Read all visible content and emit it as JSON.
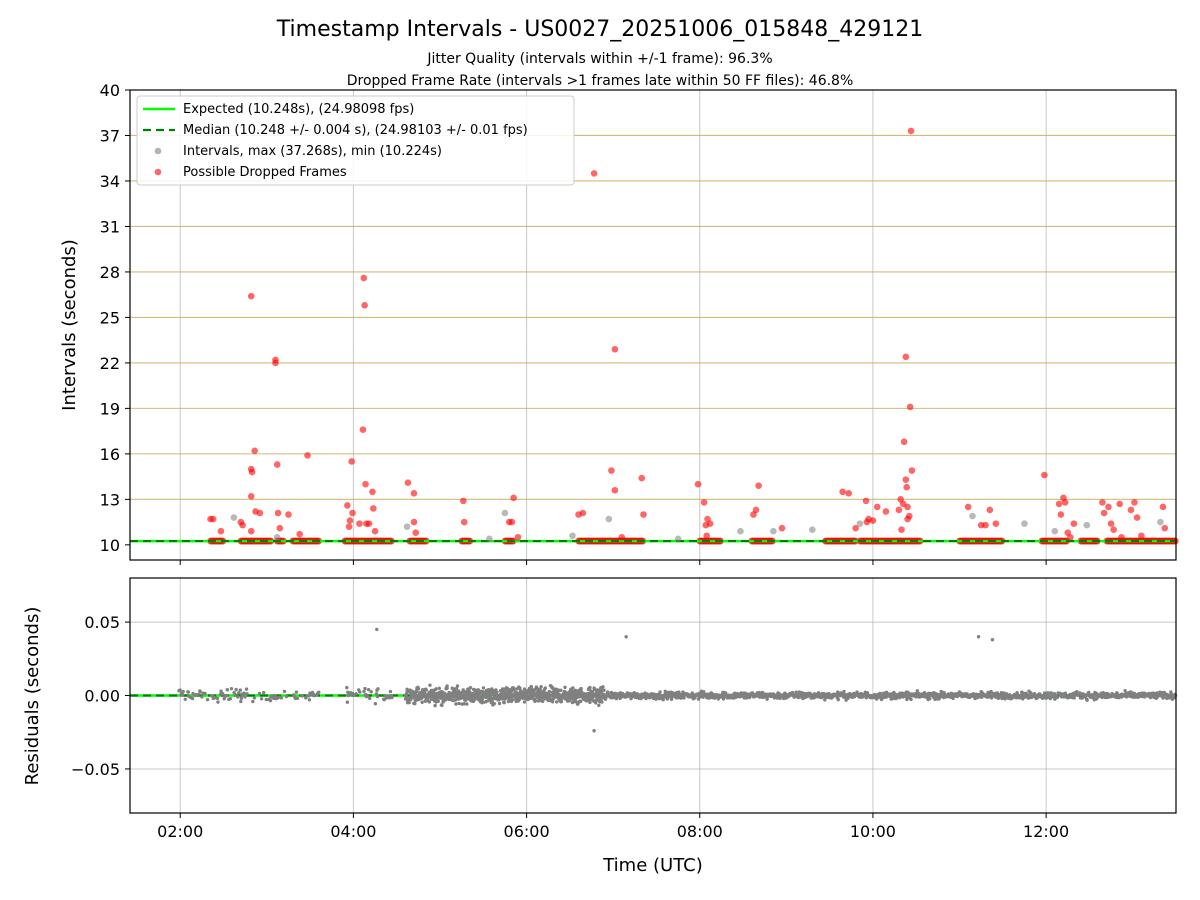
{
  "chart_data": {
    "type": "scatter",
    "title": "Timestamp Intervals - US0027_20251006_015848_429121",
    "subtitle_1": "Jitter Quality (intervals within +/-1 frame): 96.3%",
    "subtitle_2": "Dropped Frame Rate (intervals >1 frames late within 50 FF files): 46.8%",
    "xlabel": "Time (UTC)",
    "x_ticks": [
      "02:00",
      "04:00",
      "06:00",
      "08:00",
      "10:00",
      "12:00"
    ],
    "x_tick_hours": [
      2,
      4,
      6,
      8,
      10,
      12
    ],
    "xlim_hours": [
      1.42,
      13.5
    ],
    "top_panel": {
      "ylabel": "Intervals (seconds)",
      "ylim": [
        9,
        40
      ],
      "y_ticks": [
        10,
        13,
        16,
        19,
        22,
        25,
        28,
        31,
        34,
        37,
        40
      ],
      "y_tick_labels": [
        "10",
        "13",
        "16",
        "19",
        "22",
        "25",
        "28",
        "31",
        "34",
        "37",
        "40"
      ],
      "expected_line": 10.248,
      "median_line": 10.248,
      "legend": {
        "expected": "Expected (10.248s), (24.98098 fps)",
        "median": "Median (10.248 +/- 0.004 s), (24.98103 +/- 0.01 fps)",
        "intervals": "Intervals, max (37.268s), min (10.224s)",
        "dropped": "Possible Dropped Frames"
      },
      "dropped_frame_bands_hours": [
        [
          2.35,
          2.5
        ],
        [
          2.7,
          3.05
        ],
        [
          3.12,
          3.2
        ],
        [
          3.3,
          3.6
        ],
        [
          3.9,
          4.45
        ],
        [
          4.65,
          4.85
        ],
        [
          5.25,
          5.35
        ],
        [
          5.75,
          5.85
        ],
        [
          6.6,
          7.35
        ],
        [
          8.0,
          8.25
        ],
        [
          8.6,
          8.85
        ],
        [
          9.45,
          9.8
        ],
        [
          9.85,
          10.55
        ],
        [
          11.0,
          11.5
        ],
        [
          11.95,
          12.25
        ],
        [
          12.4,
          12.6
        ],
        [
          12.7,
          13.5
        ]
      ],
      "dropped_points": [
        [
          2.35,
          11.7
        ],
        [
          2.38,
          11.7
        ],
        [
          2.47,
          10.9
        ],
        [
          2.7,
          11.5
        ],
        [
          2.72,
          11.3
        ],
        [
          2.82,
          26.4
        ],
        [
          2.82,
          15.0
        ],
        [
          2.83,
          14.8
        ],
        [
          2.82,
          13.2
        ],
        [
          2.86,
          16.2
        ],
        [
          2.87,
          12.2
        ],
        [
          2.92,
          12.1
        ],
        [
          2.82,
          10.9
        ],
        [
          3.1,
          22.2
        ],
        [
          3.1,
          22.0
        ],
        [
          3.12,
          15.3
        ],
        [
          3.13,
          12.1
        ],
        [
          3.15,
          11.1
        ],
        [
          3.25,
          12.0
        ],
        [
          3.38,
          10.7
        ],
        [
          3.47,
          15.9
        ],
        [
          3.93,
          12.6
        ],
        [
          3.95,
          11.2
        ],
        [
          3.96,
          11.6
        ],
        [
          3.98,
          15.5
        ],
        [
          3.99,
          12.1
        ],
        [
          4.07,
          11.4
        ],
        [
          4.12,
          27.6
        ],
        [
          4.13,
          25.8
        ],
        [
          4.11,
          17.6
        ],
        [
          4.14,
          14.0
        ],
        [
          4.15,
          11.4
        ],
        [
          4.18,
          11.4
        ],
        [
          4.22,
          13.5
        ],
        [
          4.23,
          12.4
        ],
        [
          4.25,
          10.9
        ],
        [
          4.63,
          14.1
        ],
        [
          4.7,
          13.4
        ],
        [
          4.7,
          11.5
        ],
        [
          4.72,
          10.8
        ],
        [
          5.27,
          12.9
        ],
        [
          5.28,
          11.5
        ],
        [
          5.8,
          11.5
        ],
        [
          5.83,
          11.5
        ],
        [
          5.85,
          13.1
        ],
        [
          5.9,
          10.5
        ],
        [
          6.6,
          12.0
        ],
        [
          6.65,
          12.1
        ],
        [
          6.78,
          34.5
        ],
        [
          6.98,
          14.9
        ],
        [
          7.02,
          22.9
        ],
        [
          7.02,
          13.6
        ],
        [
          7.1,
          10.5
        ],
        [
          7.33,
          14.4
        ],
        [
          7.35,
          12.0
        ],
        [
          7.98,
          14.0
        ],
        [
          8.05,
          12.8
        ],
        [
          8.07,
          11.3
        ],
        [
          8.09,
          11.7
        ],
        [
          8.12,
          11.4
        ],
        [
          8.08,
          10.6
        ],
        [
          8.62,
          12.0
        ],
        [
          8.65,
          12.3
        ],
        [
          8.68,
          13.9
        ],
        [
          8.95,
          11.1
        ],
        [
          9.65,
          13.5
        ],
        [
          9.72,
          13.4
        ],
        [
          9.8,
          11.1
        ],
        [
          9.92,
          12.9
        ],
        [
          9.93,
          11.5
        ],
        [
          9.95,
          11.7
        ],
        [
          10.0,
          11.6
        ],
        [
          10.05,
          12.5
        ],
        [
          10.15,
          12.2
        ],
        [
          10.3,
          12.3
        ],
        [
          10.32,
          13.0
        ],
        [
          10.33,
          11.0
        ],
        [
          10.35,
          12.7
        ],
        [
          10.36,
          16.8
        ],
        [
          10.38,
          22.4
        ],
        [
          10.38,
          14.3
        ],
        [
          10.39,
          13.8
        ],
        [
          10.4,
          11.7
        ],
        [
          10.4,
          12.5
        ],
        [
          10.42,
          11.9
        ],
        [
          10.43,
          19.1
        ],
        [
          10.44,
          37.3
        ],
        [
          10.45,
          14.9
        ],
        [
          11.1,
          12.5
        ],
        [
          11.25,
          11.3
        ],
        [
          11.3,
          11.3
        ],
        [
          11.35,
          12.3
        ],
        [
          11.42,
          11.4
        ],
        [
          11.98,
          14.6
        ],
        [
          12.15,
          12.7
        ],
        [
          12.17,
          12.0
        ],
        [
          12.2,
          13.1
        ],
        [
          12.22,
          12.8
        ],
        [
          12.25,
          10.8
        ],
        [
          12.28,
          10.5
        ],
        [
          12.32,
          11.4
        ],
        [
          12.65,
          12.8
        ],
        [
          12.67,
          12.1
        ],
        [
          12.72,
          12.5
        ],
        [
          12.75,
          11.4
        ],
        [
          12.78,
          11.0
        ],
        [
          12.85,
          12.7
        ],
        [
          12.87,
          10.5
        ],
        [
          12.98,
          12.3
        ],
        [
          13.02,
          12.8
        ],
        [
          13.05,
          11.8
        ],
        [
          13.1,
          10.6
        ],
        [
          13.35,
          12.5
        ],
        [
          13.37,
          11.1
        ]
      ],
      "normal_points": [
        [
          2.62,
          11.8
        ],
        [
          3.12,
          10.5
        ],
        [
          4.62,
          11.2
        ],
        [
          5.57,
          10.4
        ],
        [
          5.75,
          12.1
        ],
        [
          6.53,
          10.6
        ],
        [
          6.95,
          11.7
        ],
        [
          7.75,
          10.4
        ],
        [
          8.47,
          10.9
        ],
        [
          8.85,
          10.9
        ],
        [
          9.3,
          11.0
        ],
        [
          9.85,
          11.4
        ],
        [
          11.15,
          11.9
        ],
        [
          11.75,
          11.4
        ],
        [
          12.1,
          10.9
        ],
        [
          12.47,
          11.3
        ],
        [
          13.32,
          11.5
        ]
      ]
    },
    "bottom_panel": {
      "ylabel": "Residuals (seconds)",
      "ylim": [
        -0.08,
        0.08
      ],
      "y_ticks": [
        0.05,
        0.0,
        -0.05
      ],
      "y_tick_labels": [
        "0.05",
        "0.00",
        "−0.05"
      ],
      "outliers": [
        [
          4.27,
          0.045
        ],
        [
          6.78,
          -0.024
        ],
        [
          7.15,
          0.04
        ],
        [
          11.22,
          0.04
        ],
        [
          11.38,
          0.038
        ]
      ]
    },
    "colors": {
      "expected": "#00ff00",
      "median": "#008000",
      "intervals": "#808080",
      "dropped": "#ff0000",
      "hline": "#c8b060",
      "grid": "#b0b0b0"
    }
  }
}
